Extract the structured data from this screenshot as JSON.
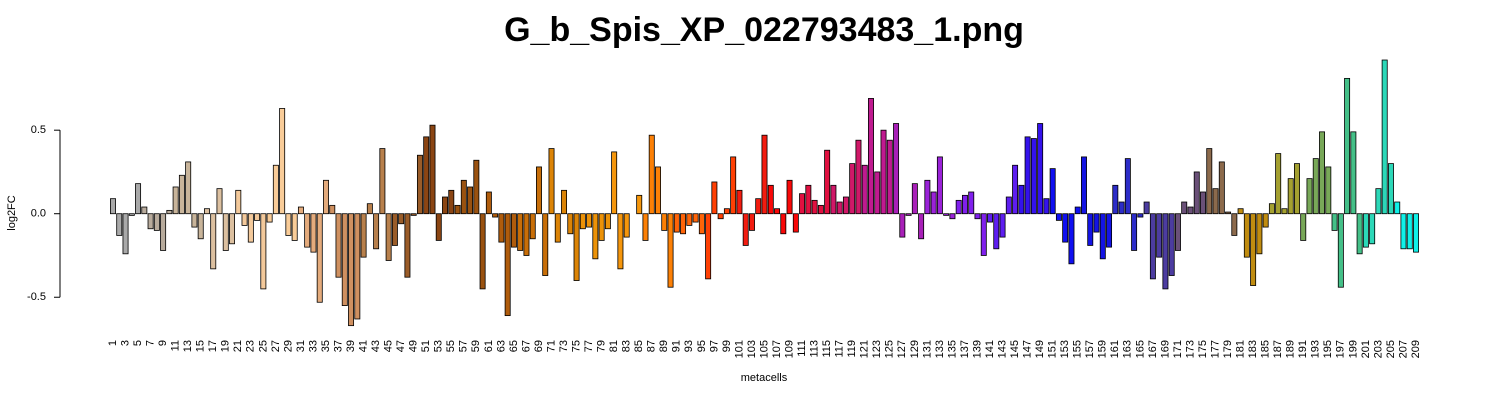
{
  "chart_data": {
    "type": "bar",
    "title": "G_b_Spis_XP_022793483_1.png",
    "xlabel": "metacells",
    "ylabel": "log2FC",
    "categories": [
      "1",
      null,
      "3",
      null,
      "5",
      null,
      "7",
      null,
      "9",
      null,
      "11",
      null,
      "13",
      null,
      "15",
      null,
      "17",
      null,
      "19",
      null,
      "21",
      null,
      "23",
      null,
      "25",
      null,
      "27",
      null,
      "29",
      null,
      "31",
      null,
      "33",
      null,
      "35",
      null,
      "37",
      null,
      "39",
      null,
      "41",
      null,
      "43",
      null,
      "45",
      null,
      "47",
      null,
      "49",
      null,
      "51",
      null,
      "53",
      null,
      "55",
      null,
      "57",
      null,
      "59",
      null,
      "61",
      null,
      "63",
      null,
      "65",
      null,
      "67",
      null,
      "69",
      null,
      "71",
      null,
      "73",
      null,
      "75",
      null,
      "77",
      null,
      "79",
      null,
      "81",
      null,
      "83",
      null,
      "85",
      null,
      "87",
      null,
      "89",
      null,
      "91",
      null,
      "93",
      null,
      "95",
      null,
      "97",
      null,
      "99",
      null,
      "101",
      null,
      "103",
      null,
      "105",
      null,
      "107",
      null,
      "109",
      null,
      "111",
      null,
      "113",
      null,
      "115",
      null,
      "117",
      null,
      "119",
      null,
      "121",
      null,
      "123",
      null,
      "125",
      null,
      "127",
      null,
      "129",
      null,
      "131",
      null,
      "133",
      null,
      "135",
      null,
      "137",
      null,
      "139",
      null,
      "141",
      null,
      "143",
      null,
      "145",
      null,
      "147",
      null,
      "149",
      null,
      "151",
      null,
      "153",
      null,
      "155",
      null,
      "157",
      null,
      "159",
      null,
      "161",
      null,
      "163",
      null,
      "165",
      null,
      "167",
      null,
      "169",
      null,
      "171",
      null,
      "173",
      null,
      "175",
      null,
      "177",
      null,
      "179",
      null,
      "181",
      null,
      "183",
      null,
      "185",
      null,
      "187",
      null,
      "189",
      null,
      "191",
      null,
      "193",
      null,
      "195",
      null,
      "197",
      null,
      "199",
      null,
      "201",
      null,
      "203",
      null,
      "205",
      null,
      "207",
      null,
      "209"
    ],
    "values": [
      0.09,
      -0.13,
      -0.24,
      -0.01,
      0.18,
      0.04,
      -0.09,
      -0.1,
      -0.22,
      0.02,
      0.16,
      0.23,
      0.31,
      -0.08,
      -0.15,
      0.03,
      -0.33,
      0.15,
      -0.22,
      -0.18,
      0.14,
      -0.07,
      -0.17,
      -0.04,
      -0.45,
      -0.05,
      0.29,
      0.63,
      -0.13,
      -0.16,
      0.04,
      -0.2,
      -0.23,
      -0.53,
      0.2,
      0.05,
      -0.38,
      -0.55,
      -0.67,
      -0.63,
      -0.26,
      0.06,
      -0.21,
      0.39,
      -0.28,
      -0.19,
      -0.06,
      -0.38,
      -0.01,
      0.35,
      0.46,
      0.53,
      -0.16,
      0.1,
      0.14,
      0.05,
      0.2,
      0.16,
      0.32,
      -0.45,
      0.13,
      -0.02,
      -0.17,
      -0.61,
      -0.2,
      -0.22,
      -0.25,
      -0.15,
      0.28,
      -0.37,
      0.39,
      -0.17,
      0.14,
      -0.12,
      -0.4,
      -0.09,
      -0.08,
      -0.27,
      -0.16,
      -0.09,
      0.37,
      -0.33,
      -0.14,
      0.0,
      0.11,
      -0.16,
      0.47,
      0.28,
      -0.1,
      -0.44,
      -0.11,
      -0.12,
      -0.07,
      -0.05,
      -0.12,
      -0.39,
      0.19,
      -0.03,
      0.03,
      0.34,
      0.14,
      -0.19,
      -0.1,
      0.09,
      0.47,
      0.17,
      0.03,
      -0.12,
      0.2,
      -0.11,
      0.12,
      0.17,
      0.08,
      0.05,
      0.38,
      0.17,
      0.07,
      0.1,
      0.3,
      0.44,
      0.29,
      0.69,
      0.25,
      0.5,
      0.44,
      0.54,
      -0.14,
      -0.01,
      0.18,
      -0.15,
      0.2,
      0.13,
      0.34,
      -0.01,
      -0.03,
      0.08,
      0.11,
      0.13,
      -0.03,
      -0.25,
      -0.05,
      -0.21,
      -0.14,
      0.1,
      0.29,
      0.17,
      0.46,
      0.45,
      0.54,
      0.09,
      0.27,
      -0.04,
      -0.17,
      -0.3,
      0.04,
      0.34,
      -0.19,
      -0.11,
      -0.27,
      -0.2,
      0.17,
      0.07,
      0.33,
      -0.22,
      -0.02,
      0.07,
      -0.39,
      -0.26,
      -0.45,
      -0.37,
      -0.22,
      0.07,
      0.04,
      0.25,
      0.13,
      0.39,
      0.15,
      0.31,
      0.01,
      -0.13,
      0.03,
      -0.26,
      -0.43,
      -0.24,
      -0.08,
      0.06,
      0.36,
      0.03,
      0.21,
      0.3,
      -0.16,
      0.21,
      0.33,
      0.49,
      0.28,
      -0.1,
      -0.44,
      0.81,
      0.49,
      -0.24,
      -0.2,
      -0.18,
      0.15,
      0.92,
      0.3,
      0.07,
      -0.21,
      -0.21,
      -0.23
    ],
    "colors": [
      "#a9a9a9",
      "#a9a9a9",
      "#a9a9a9",
      "#a9a9a9",
      "#a9a9a9",
      "#b8ab9c",
      "#b8ab9c",
      "#b8ab9c",
      "#b8ab9c",
      "#b8ab9c",
      "#c8b49a",
      "#c8b49a",
      "#c8b49a",
      "#c8b49a",
      "#c8b49a",
      "#dcc0a0",
      "#dcc0a0",
      "#dcc0a0",
      "#dcc0a0",
      "#dcc0a0",
      "#f3c99b",
      "#f3c99b",
      "#f3c99b",
      "#f3c99b",
      "#f3c99b",
      "#f9cc98",
      "#f9cc98",
      "#f9cc98",
      "#f9cc98",
      "#f9cc98",
      "#e4ab7c",
      "#e4ab7c",
      "#e4ab7c",
      "#e4ab7c",
      "#e4ab7c",
      "#cf9060",
      "#cf9060",
      "#cf9060",
      "#cf9060",
      "#cf9060",
      "#b8804c",
      "#b8804c",
      "#b8804c",
      "#b8804c",
      "#b8804c",
      "#9a5c28",
      "#9a5c28",
      "#9a5c28",
      "#9a5c28",
      "#9a5c28",
      "#8b4513",
      "#8b4513",
      "#8b4513",
      "#8b4513",
      "#8b4513",
      "#9a5210",
      "#9a5210",
      "#9a5210",
      "#9a5210",
      "#9a5210",
      "#b05c0c",
      "#b05c0c",
      "#b05c0c",
      "#b05c0c",
      "#b05c0c",
      "#c86e08",
      "#c86e08",
      "#c86e08",
      "#c86e08",
      "#c86e08",
      "#dc8406",
      "#dc8406",
      "#dc8406",
      "#dc8406",
      "#dc8406",
      "#ec9208",
      "#ec9208",
      "#ec9208",
      "#ec9208",
      "#ec9208",
      "#f5960c",
      "#f5960c",
      "#f5960c",
      "#f5960c",
      "#f5960c",
      "#fc8006",
      "#fc8006",
      "#fc8006",
      "#fc8006",
      "#fc8006",
      "#ff6408",
      "#ff6408",
      "#ff6408",
      "#ff6408",
      "#ff6408",
      "#ff4004",
      "#ff4004",
      "#ff4004",
      "#ff4004",
      "#ff4004",
      "#f21c10",
      "#f21c10",
      "#f21c10",
      "#f21c10",
      "#f21c10",
      "#f80808",
      "#f80808",
      "#f80808",
      "#f80808",
      "#f80808",
      "#e01040",
      "#e01040",
      "#e01040",
      "#e01040",
      "#e01040",
      "#d01868",
      "#d01868",
      "#d01868",
      "#d01868",
      "#d01868",
      "#c01a90",
      "#c01a90",
      "#c01a90",
      "#c01a90",
      "#c01a90",
      "#a820b8",
      "#a820b8",
      "#a820b8",
      "#a820b8",
      "#a820b8",
      "#9a22d8",
      "#9a22d8",
      "#9a22d8",
      "#9a22d8",
      "#9a22d8",
      "#8020ec",
      "#8020ec",
      "#8020ec",
      "#8020ec",
      "#8020ec",
      "#5e1ef0",
      "#5e1ef0",
      "#5e1ef0",
      "#5e1ef0",
      "#5e1ef0",
      "#3412ec",
      "#3412ec",
      "#3412ec",
      "#3412ec",
      "#3412ec",
      "#1010f0",
      "#1010f0",
      "#1010f0",
      "#1010f0",
      "#1010f0",
      "#1414e4",
      "#1414e4",
      "#1414e4",
      "#1414e4",
      "#1414e4",
      "#2c2cc8",
      "#2c2cc8",
      "#2c2cc8",
      "#2c2cc8",
      "#2c2cc8",
      "#4c3ca0",
      "#4c3ca0",
      "#4c3ca0",
      "#4c3ca0",
      "#4c3ca0",
      "#6a5078",
      "#6a5078",
      "#6a5078",
      "#6a5078",
      "#6a5078",
      "#8c6a4c",
      "#8c6a4c",
      "#8c6a4c",
      "#8c6a4c",
      "#8c6a4c",
      "#c08c10",
      "#c08c10",
      "#c08c10",
      "#c08c10",
      "#c08c10",
      "#a4a030",
      "#a4a030",
      "#a4a030",
      "#a4a030",
      "#a4a030",
      "#78a858",
      "#78a858",
      "#78a858",
      "#78a858",
      "#78a858",
      "#44c088",
      "#44c088",
      "#44c088",
      "#44c088",
      "#44c088",
      "#2cd8b8",
      "#2cd8b8",
      "#2cd8b8",
      "#2cd8b8",
      "#2cd8b8",
      "#10f0e8",
      "#10f0e8",
      "#10f0e8",
      "#10f0e8"
    ],
    "ylim": [
      -0.72,
      0.95
    ],
    "yticks": [
      -0.5,
      {
        "value": 0,
        "label": "0.0"
      },
      0.5
    ]
  }
}
